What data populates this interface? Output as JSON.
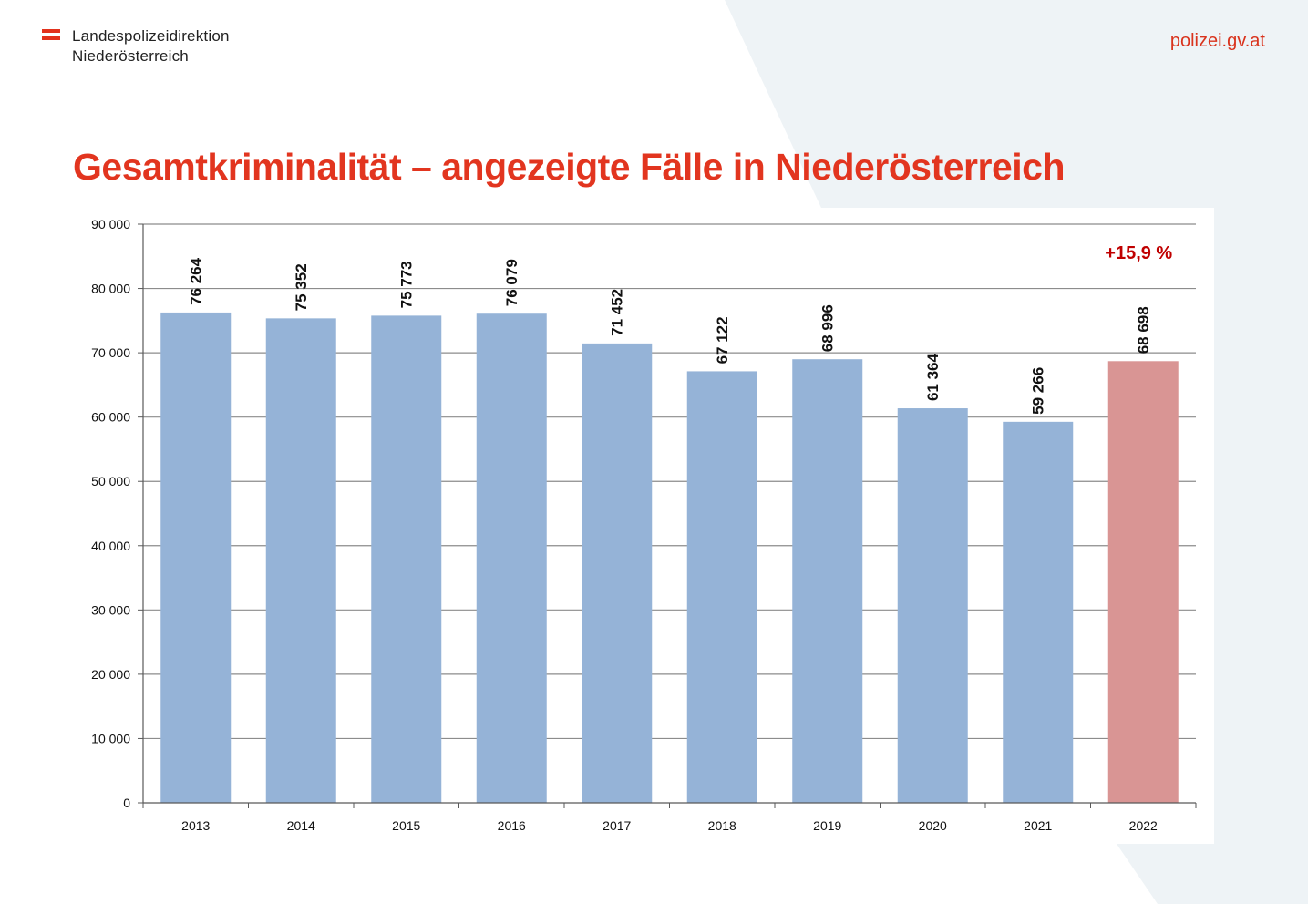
{
  "header": {
    "org_line1": "Landespolizeidirektion",
    "org_line2": "Niederösterreich",
    "site": "polizei.gv.at"
  },
  "colors": {
    "accent": "#e2351f",
    "bar_default": "#95b3d7",
    "bar_highlight": "#d99594",
    "annotation": "#c00000",
    "background_shape": "#eef3f6"
  },
  "chart_data": {
    "type": "bar",
    "title": "Gesamtkriminalität – angezeigte Fälle in Niederösterreich",
    "xlabel": "",
    "ylabel": "",
    "categories": [
      "2013",
      "2014",
      "2015",
      "2016",
      "2017",
      "2018",
      "2019",
      "2020",
      "2021",
      "2022"
    ],
    "values": [
      76264,
      75352,
      75773,
      76079,
      71452,
      67122,
      68996,
      61364,
      59266,
      68698
    ],
    "data_labels": [
      "76 264",
      "75 352",
      "75 773",
      "76 079",
      "71 452",
      "67 122",
      "68 996",
      "61 364",
      "59 266",
      "68 698"
    ],
    "highlight_index": 9,
    "ylim": [
      0,
      90000
    ],
    "y_ticks": [
      0,
      10000,
      20000,
      30000,
      40000,
      50000,
      60000,
      70000,
      80000,
      90000
    ],
    "y_tick_labels": [
      "0",
      "10 000",
      "20 000",
      "30 000",
      "40 000",
      "50 000",
      "60 000",
      "70 000",
      "80 000",
      "90 000"
    ],
    "grid": true,
    "legend": "none",
    "annotations": [
      "+15,9 %"
    ]
  }
}
